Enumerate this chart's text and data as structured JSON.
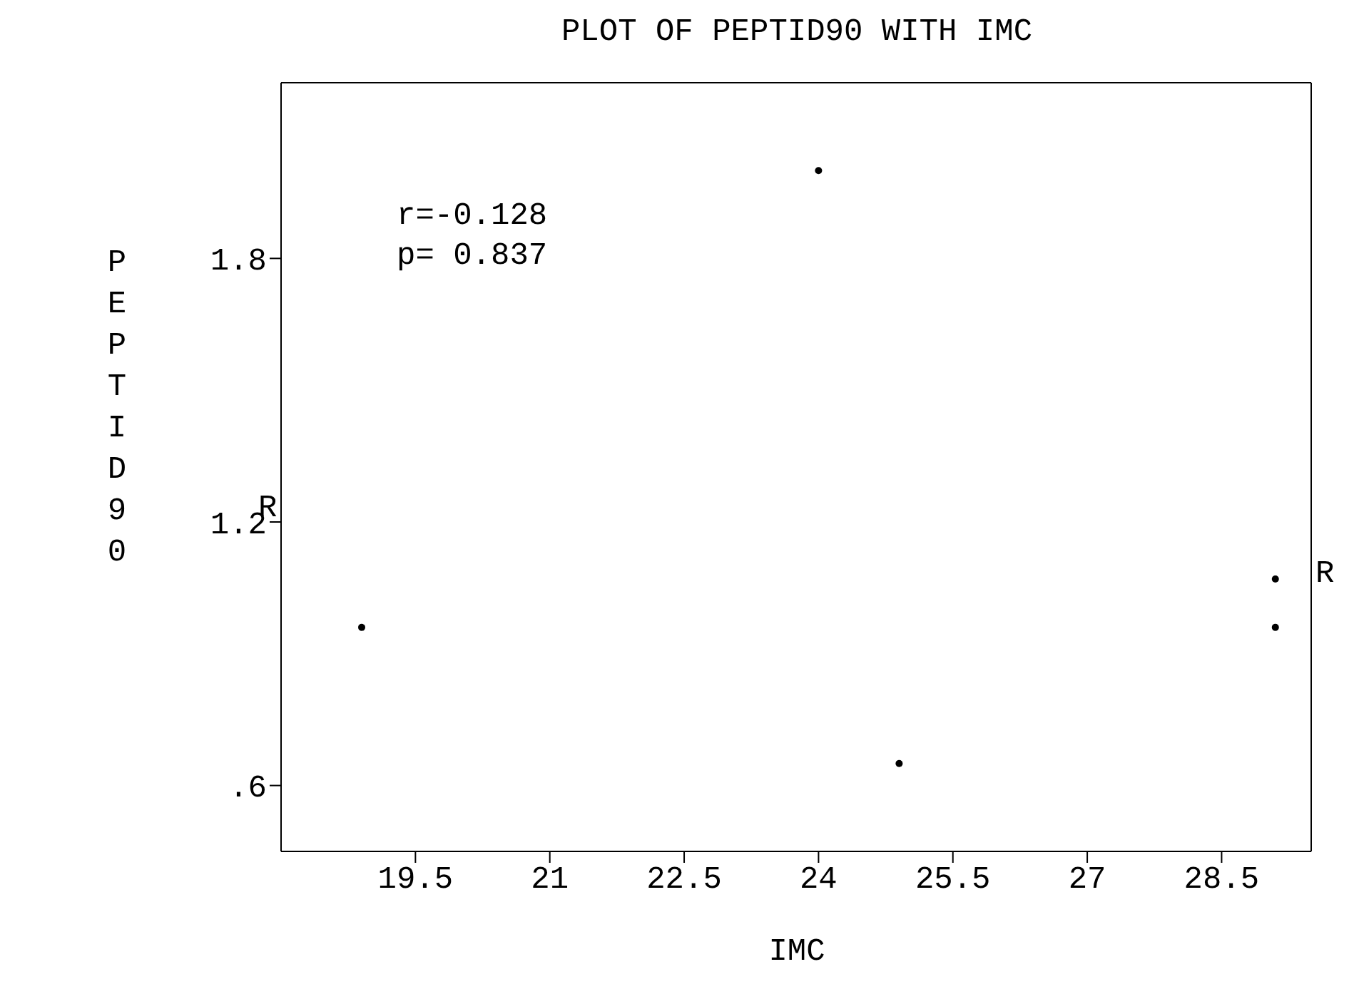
{
  "chart_data": {
    "type": "scatter",
    "title": "PLOT OF PEPTID90 WITH IMC",
    "xlabel": "IMC",
    "ylabel": "PEPTID90",
    "x": [
      18.9,
      24.0,
      24.9,
      29.1,
      29.1
    ],
    "series": [
      {
        "color": "#000000",
        "values": [
          0.96,
          2.0,
          0.65,
          1.07,
          0.96
        ]
      }
    ],
    "xlim": [
      18.0,
      29.5
    ],
    "xticks": [
      19.5,
      21,
      22.5,
      24,
      25.5,
      27,
      28.5
    ],
    "ylim": [
      0.45,
      2.2
    ],
    "yticks": [
      {
        "value": 0.6,
        "label": ".6"
      },
      1.2,
      1.8
    ],
    "annotations": [
      "r=-0.128",
      "p= 0.837",
      "R",
      "R"
    ],
    "marker": "circle"
  }
}
